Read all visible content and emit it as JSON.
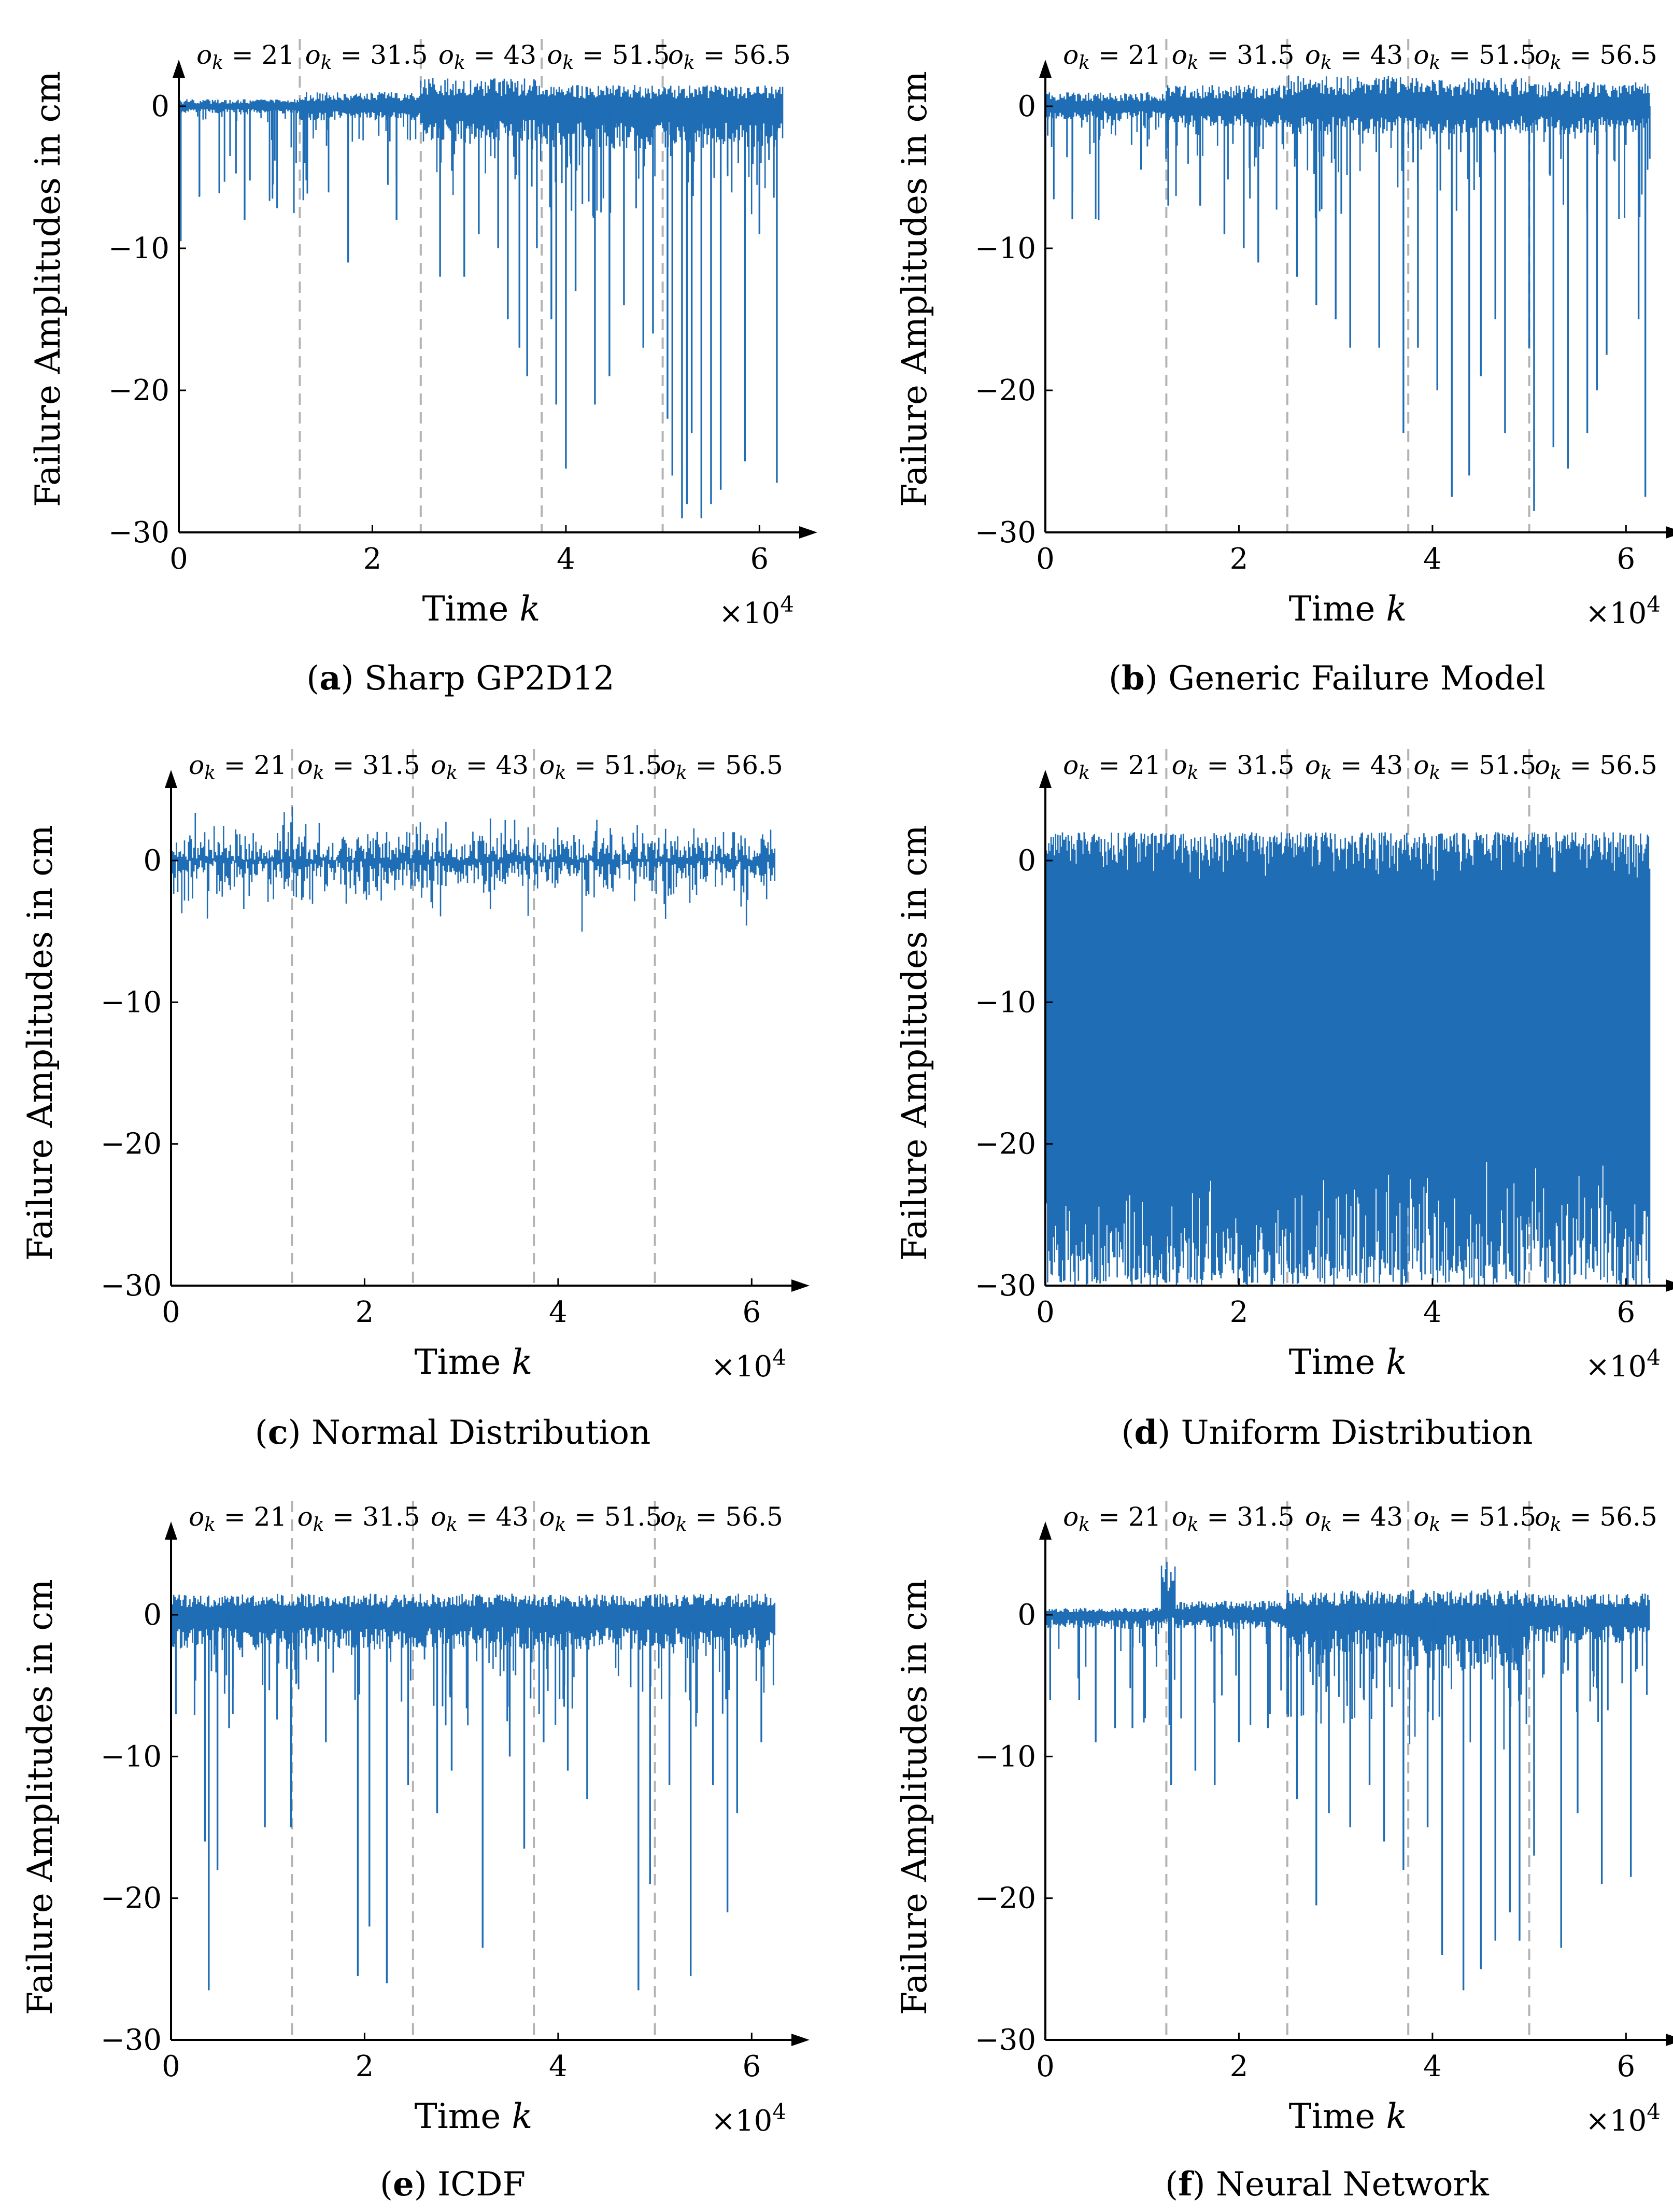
{
  "figure": {
    "y_axis_label": "Failure Amplitudes in cm",
    "x_axis_label": "Time k",
    "x_multiplier": "×10^4",
    "segment_labels": [
      "o_k = 21",
      "o_k = 31.5",
      "o_k = 43",
      "o_k = 51.5",
      "o_k = 56.5"
    ],
    "segment_boundaries": [
      12500,
      25000,
      37500,
      50000
    ]
  },
  "chart_data": [
    {
      "id": "a",
      "type": "line",
      "caption_letter": "a",
      "caption_text": "Sharp GP2D12",
      "title": "",
      "xlabel": "Time k",
      "ylabel": "Failure Amplitudes in cm",
      "xlim": [
        0,
        62500
      ],
      "ylim": [
        -30,
        5
      ],
      "xticks": [
        0,
        20000,
        40000,
        60000
      ],
      "xtick_labels": [
        "0",
        "2",
        "4",
        "6"
      ],
      "yticks": [
        0,
        -10,
        -20,
        -30
      ],
      "ytick_labels": [
        "0",
        "−10",
        "−20",
        "−30"
      ],
      "series": [
        {
          "name": "failure amplitude",
          "color": "#1f6db5",
          "band_segments": [
            {
              "x0": 0,
              "x1": 12500,
              "upper": 0.5,
              "lower": -0.5
            },
            {
              "x0": 12500,
              "x1": 25000,
              "upper": 1.0,
              "lower": -1.0
            },
            {
              "x0": 25000,
              "x1": 37500,
              "upper": 2.0,
              "lower": -2.5
            },
            {
              "x0": 37500,
              "x1": 50000,
              "upper": 1.5,
              "lower": -3.0
            },
            {
              "x0": 50000,
              "x1": 62500,
              "upper": 1.5,
              "lower": -3.0
            }
          ],
          "spikes": [
            {
              "x": 200,
              "y": -9.5
            },
            {
              "x": 6800,
              "y": -8
            },
            {
              "x": 13000,
              "y": -4
            },
            {
              "x": 17500,
              "y": -11
            },
            {
              "x": 22500,
              "y": -8
            },
            {
              "x": 27000,
              "y": -12
            },
            {
              "x": 29500,
              "y": -12
            },
            {
              "x": 31000,
              "y": -9
            },
            {
              "x": 33000,
              "y": -10
            },
            {
              "x": 34000,
              "y": -15
            },
            {
              "x": 35200,
              "y": -17
            },
            {
              "x": 36000,
              "y": -19
            },
            {
              "x": 37000,
              "y": -10
            },
            {
              "x": 38500,
              "y": -15
            },
            {
              "x": 39000,
              "y": -21
            },
            {
              "x": 40000,
              "y": -25.5
            },
            {
              "x": 41000,
              "y": -13
            },
            {
              "x": 43000,
              "y": -21
            },
            {
              "x": 44500,
              "y": -19
            },
            {
              "x": 46000,
              "y": -14
            },
            {
              "x": 48000,
              "y": -17
            },
            {
              "x": 49000,
              "y": -16
            },
            {
              "x": 50500,
              "y": -22
            },
            {
              "x": 51000,
              "y": -26
            },
            {
              "x": 52000,
              "y": -29
            },
            {
              "x": 52500,
              "y": -28
            },
            {
              "x": 53000,
              "y": -23
            },
            {
              "x": 54000,
              "y": -29
            },
            {
              "x": 55000,
              "y": -28
            },
            {
              "x": 56000,
              "y": -27
            },
            {
              "x": 58500,
              "y": -25
            },
            {
              "x": 60000,
              "y": -9
            },
            {
              "x": 61800,
              "y": -26.5
            }
          ],
          "density": 0.12
        }
      ]
    },
    {
      "id": "b",
      "type": "line",
      "caption_letter": "b",
      "caption_text": "Generic Failure Model",
      "title": "",
      "xlabel": "Time k",
      "ylabel": "Failure Amplitudes in cm",
      "xlim": [
        0,
        62500
      ],
      "ylim": [
        -30,
        5
      ],
      "xticks": [
        0,
        20000,
        40000,
        60000
      ],
      "xtick_labels": [
        "0",
        "2",
        "4",
        "6"
      ],
      "yticks": [
        0,
        -10,
        -20,
        -30
      ],
      "ytick_labels": [
        "0",
        "−10",
        "−20",
        "−30"
      ],
      "series": [
        {
          "name": "failure amplitude",
          "color": "#1f6db5",
          "band_segments": [
            {
              "x0": 0,
              "x1": 12500,
              "upper": 1.0,
              "lower": -1.0
            },
            {
              "x0": 12500,
              "x1": 25000,
              "upper": 1.5,
              "lower": -1.5
            },
            {
              "x0": 25000,
              "x1": 37500,
              "upper": 2.2,
              "lower": -2.0
            },
            {
              "x0": 37500,
              "x1": 50000,
              "upper": 2.0,
              "lower": -2.0
            },
            {
              "x0": 50000,
              "x1": 62500,
              "upper": 1.8,
              "lower": -2.0
            }
          ],
          "spikes": [
            {
              "x": 2800,
              "y": -6
            },
            {
              "x": 5500,
              "y": -8
            },
            {
              "x": 12700,
              "y": -7
            },
            {
              "x": 16000,
              "y": -7
            },
            {
              "x": 18500,
              "y": -9
            },
            {
              "x": 20500,
              "y": -10
            },
            {
              "x": 22000,
              "y": -11
            },
            {
              "x": 26000,
              "y": -12
            },
            {
              "x": 28000,
              "y": -14
            },
            {
              "x": 30000,
              "y": -15
            },
            {
              "x": 31500,
              "y": -17
            },
            {
              "x": 34500,
              "y": -17
            },
            {
              "x": 37000,
              "y": -23
            },
            {
              "x": 38500,
              "y": -17
            },
            {
              "x": 40500,
              "y": -20
            },
            {
              "x": 42000,
              "y": -27.5
            },
            {
              "x": 43800,
              "y": -26
            },
            {
              "x": 45000,
              "y": -19
            },
            {
              "x": 46500,
              "y": -15
            },
            {
              "x": 47500,
              "y": -23
            },
            {
              "x": 50000,
              "y": -17
            },
            {
              "x": 50500,
              "y": -28.5
            },
            {
              "x": 52500,
              "y": -24
            },
            {
              "x": 54000,
              "y": -25.5
            },
            {
              "x": 56000,
              "y": -23
            },
            {
              "x": 57000,
              "y": -20
            },
            {
              "x": 58000,
              "y": -17.5
            },
            {
              "x": 61300,
              "y": -15
            },
            {
              "x": 62000,
              "y": -27.5
            }
          ],
          "density": 0.12
        }
      ]
    },
    {
      "id": "c",
      "type": "line",
      "caption_letter": "c",
      "caption_text": "Normal Distribution",
      "title": "",
      "xlabel": "Time k",
      "ylabel": "Failure Amplitudes in cm",
      "xlim": [
        0,
        62500
      ],
      "ylim": [
        -30,
        5
      ],
      "xticks": [
        0,
        20000,
        40000,
        60000
      ],
      "xtick_labels": [
        "0",
        "2",
        "4",
        "6"
      ],
      "yticks": [
        0,
        -10,
        -20,
        -30
      ],
      "ytick_labels": [
        "0",
        "−10",
        "−20",
        "−30"
      ],
      "series": [
        {
          "name": "failure amplitude",
          "color": "#1f6db5",
          "band_segments": [
            {
              "x0": 0,
              "x1": 62500,
              "upper": 4.5,
              "lower": -5.5
            }
          ],
          "spikes": [],
          "density": 0.0
        }
      ]
    },
    {
      "id": "d",
      "type": "line",
      "caption_letter": "d",
      "caption_text": "Uniform Distribution",
      "title": "",
      "xlabel": "Time k",
      "ylabel": "Failure Amplitudes in cm",
      "xlim": [
        0,
        62500
      ],
      "ylim": [
        -30,
        5
      ],
      "xticks": [
        0,
        20000,
        40000,
        60000
      ],
      "xtick_labels": [
        "0",
        "2",
        "4",
        "6"
      ],
      "yticks": [
        0,
        -10,
        -20,
        -30
      ],
      "ytick_labels": [
        "0",
        "−10",
        "−20",
        "−30"
      ],
      "series": [
        {
          "name": "failure amplitude",
          "color": "#1f6db5",
          "band_segments": [
            {
              "x0": 0,
              "x1": 62500,
              "upper": 2.0,
              "lower": -30.0
            }
          ],
          "spikes": [],
          "density": 0.0
        }
      ]
    },
    {
      "id": "e",
      "type": "line",
      "caption_letter": "e",
      "caption_text": "ICDF",
      "title": "",
      "xlabel": "Time k",
      "ylabel": "Failure Amplitudes in cm",
      "xlim": [
        0,
        62500
      ],
      "ylim": [
        -30,
        5
      ],
      "xticks": [
        0,
        20000,
        40000,
        60000
      ],
      "xtick_labels": [
        "0",
        "2",
        "4",
        "6"
      ],
      "yticks": [
        0,
        -10,
        -20,
        -30
      ],
      "ytick_labels": [
        "0",
        "−10",
        "−20",
        "−30"
      ],
      "series": [
        {
          "name": "failure amplitude",
          "color": "#1f6db5",
          "band_segments": [
            {
              "x0": 0,
              "x1": 62500,
              "upper": 1.5,
              "lower": -2.5
            }
          ],
          "spikes": [
            {
              "x": 500,
              "y": -7
            },
            {
              "x": 3500,
              "y": -16
            },
            {
              "x": 3900,
              "y": -26.5
            },
            {
              "x": 4800,
              "y": -18
            },
            {
              "x": 6000,
              "y": -8
            },
            {
              "x": 9700,
              "y": -15
            },
            {
              "x": 12400,
              "y": -15
            },
            {
              "x": 16000,
              "y": -9
            },
            {
              "x": 19300,
              "y": -25.5
            },
            {
              "x": 20500,
              "y": -22
            },
            {
              "x": 22300,
              "y": -26
            },
            {
              "x": 24500,
              "y": -12
            },
            {
              "x": 27500,
              "y": -14
            },
            {
              "x": 29000,
              "y": -11
            },
            {
              "x": 32200,
              "y": -23.5
            },
            {
              "x": 35000,
              "y": -10
            },
            {
              "x": 36500,
              "y": -16.5
            },
            {
              "x": 38500,
              "y": -9
            },
            {
              "x": 41000,
              "y": -11
            },
            {
              "x": 43000,
              "y": -13
            },
            {
              "x": 48300,
              "y": -26.5
            },
            {
              "x": 49500,
              "y": -19
            },
            {
              "x": 51500,
              "y": -12
            },
            {
              "x": 53700,
              "y": -25.5
            },
            {
              "x": 56000,
              "y": -12
            },
            {
              "x": 57500,
              "y": -21
            },
            {
              "x": 58500,
              "y": -14
            },
            {
              "x": 61000,
              "y": -9
            }
          ],
          "density": 0.1
        }
      ]
    },
    {
      "id": "f",
      "type": "line",
      "caption_letter": "f",
      "caption_text": "Neural Network",
      "title": "",
      "xlabel": "Time k",
      "ylabel": "Failure Amplitudes in cm",
      "xlim": [
        0,
        62500
      ],
      "ylim": [
        -30,
        5
      ],
      "xticks": [
        0,
        20000,
        40000,
        60000
      ],
      "xtick_labels": [
        "0",
        "2",
        "4",
        "6"
      ],
      "yticks": [
        0,
        -10,
        -20,
        -30
      ],
      "ytick_labels": [
        "0",
        "−10",
        "−20",
        "−30"
      ],
      "series": [
        {
          "name": "failure amplitude",
          "color": "#1f6db5",
          "band_segments": [
            {
              "x0": 0,
              "x1": 12000,
              "upper": 0.5,
              "lower": -1.0
            },
            {
              "x0": 12000,
              "x1": 13500,
              "upper": 3.8,
              "lower": -0.5
            },
            {
              "x0": 13500,
              "x1": 25000,
              "upper": 1.0,
              "lower": -1.0
            },
            {
              "x0": 25000,
              "x1": 37500,
              "upper": 1.8,
              "lower": -3.0
            },
            {
              "x0": 37500,
              "x1": 50000,
              "upper": 1.8,
              "lower": -4.0
            },
            {
              "x0": 50000,
              "x1": 62500,
              "upper": 1.5,
              "lower": -2.0
            }
          ],
          "spikes": [
            {
              "x": 500,
              "y": -6
            },
            {
              "x": 3500,
              "y": -6
            },
            {
              "x": 5200,
              "y": -9
            },
            {
              "x": 7200,
              "y": -8
            },
            {
              "x": 9000,
              "y": -8
            },
            {
              "x": 13000,
              "y": -12
            },
            {
              "x": 15500,
              "y": -11
            },
            {
              "x": 17500,
              "y": -12
            },
            {
              "x": 20000,
              "y": -9
            },
            {
              "x": 23000,
              "y": -8
            },
            {
              "x": 26000,
              "y": -13
            },
            {
              "x": 28000,
              "y": -20.5
            },
            {
              "x": 29300,
              "y": -14
            },
            {
              "x": 31500,
              "y": -15
            },
            {
              "x": 33500,
              "y": -12
            },
            {
              "x": 35000,
              "y": -16
            },
            {
              "x": 37000,
              "y": -18
            },
            {
              "x": 39500,
              "y": -15
            },
            {
              "x": 41000,
              "y": -24
            },
            {
              "x": 43200,
              "y": -26.5
            },
            {
              "x": 45000,
              "y": -25
            },
            {
              "x": 46500,
              "y": -23
            },
            {
              "x": 48000,
              "y": -21
            },
            {
              "x": 49000,
              "y": -23
            },
            {
              "x": 50500,
              "y": -17
            },
            {
              "x": 53300,
              "y": -23.5
            },
            {
              "x": 55000,
              "y": -14
            },
            {
              "x": 57500,
              "y": -19
            },
            {
              "x": 60500,
              "y": -18.5
            }
          ],
          "density": 0.1
        }
      ]
    }
  ]
}
